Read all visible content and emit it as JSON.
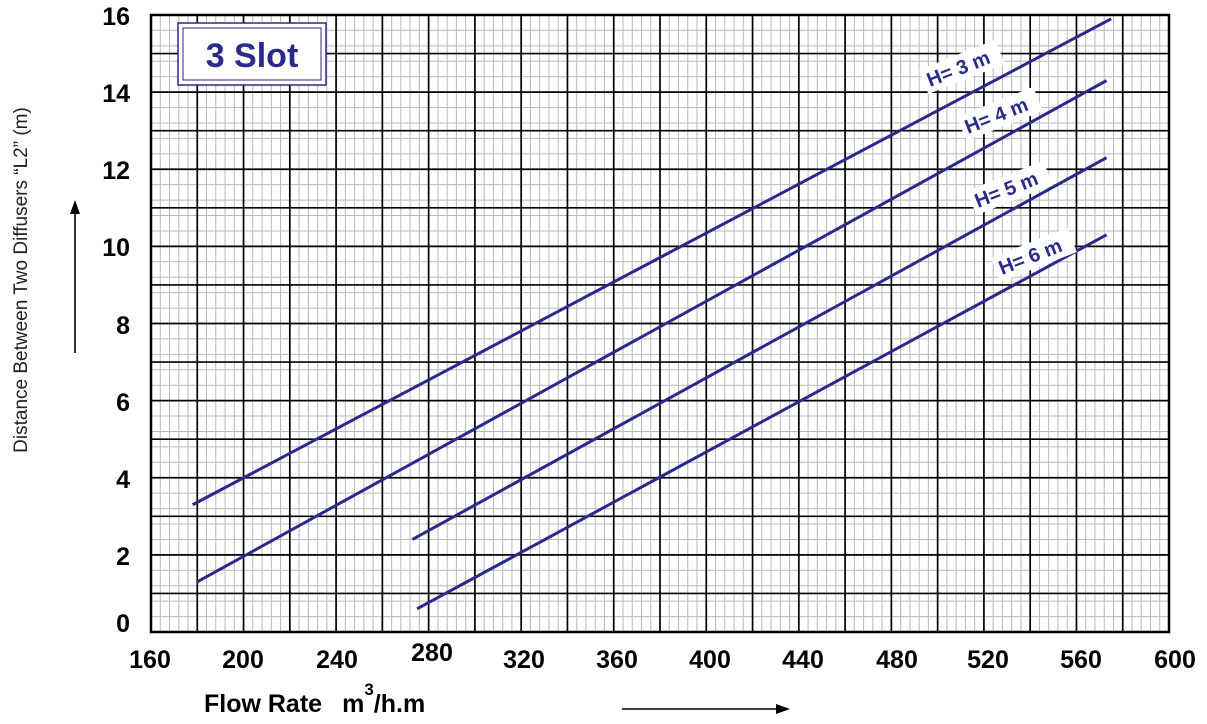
{
  "chart_data": {
    "type": "line",
    "title": "3 Slot",
    "xlabel": "Flow Rate",
    "xlabel_unit": {
      "base": "m",
      "sup": "3",
      "rest": "/h.m"
    },
    "ylabel": "Distance Between Two Diffusers “L2” (m)",
    "xlim": [
      160,
      600
    ],
    "ylim": [
      0,
      16
    ],
    "xticks": [
      "160",
      "200",
      "240",
      "280",
      "320",
      "360",
      "400",
      "440",
      "480",
      "520",
      "560",
      "600"
    ],
    "yticks": [
      "0",
      "2",
      "4",
      "6",
      "8",
      "10",
      "12",
      "14",
      "16"
    ],
    "grid": true,
    "series": [
      {
        "name": "H= 3 m",
        "x": [
          178,
          575
        ],
        "y": [
          3.3,
          15.9
        ]
      },
      {
        "name": "H= 4 m",
        "x": [
          180,
          573
        ],
        "y": [
          1.3,
          14.3
        ]
      },
      {
        "name": "H= 5 m",
        "x": [
          273,
          573
        ],
        "y": [
          2.4,
          12.3
        ]
      },
      {
        "name": "H= 6 m",
        "x": [
          275,
          573
        ],
        "y": [
          0.6,
          10.3
        ]
      }
    ],
    "colors": {
      "series": "#2a2a8a",
      "grid_major": "#000000",
      "grid_minor": "#b8b8b8",
      "frame": "#000000"
    }
  }
}
